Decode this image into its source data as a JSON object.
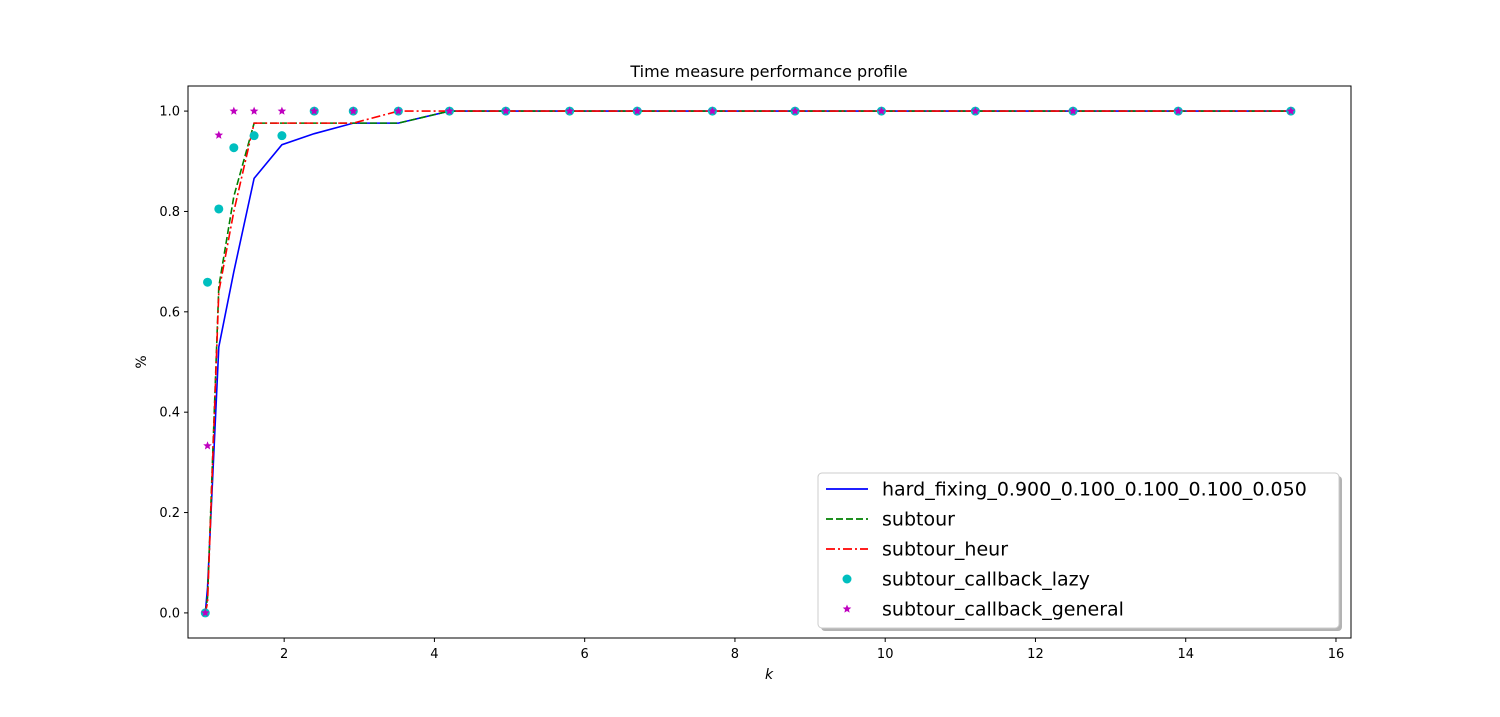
{
  "chart_data": {
    "type": "line",
    "title": "Time measure performance profile",
    "xlabel": "k",
    "ylabel": "%",
    "xlim": [
      0.72,
      16.2
    ],
    "ylim": [
      -0.05,
      1.05
    ],
    "xticks": [
      2,
      4,
      6,
      8,
      10,
      12,
      14,
      16
    ],
    "yticks": [
      0.0,
      0.2,
      0.4,
      0.6,
      0.8,
      1.0
    ],
    "grid": false,
    "legend_position": "lower-right",
    "series": [
      {
        "name": "hard_fixing_0.900_0.100_0.100_0.100_0.050",
        "style": "solid",
        "marker": "none",
        "color": "#0000ff",
        "points": [
          [
            0.95,
            0.0
          ],
          [
            0.98,
            0.05
          ],
          [
            1.13,
            0.53
          ],
          [
            1.33,
            0.68
          ],
          [
            1.6,
            0.866
          ],
          [
            1.97,
            0.933
          ],
          [
            2.4,
            0.955
          ],
          [
            2.92,
            0.976
          ],
          [
            3.52,
            0.976
          ],
          [
            4.2,
            1.0
          ],
          [
            4.95,
            1.0
          ],
          [
            5.8,
            1.0
          ],
          [
            6.7,
            1.0
          ],
          [
            7.7,
            1.0
          ],
          [
            8.8,
            1.0
          ],
          [
            9.95,
            1.0
          ],
          [
            11.2,
            1.0
          ],
          [
            12.5,
            1.0
          ],
          [
            13.9,
            1.0
          ],
          [
            15.4,
            1.0
          ]
        ]
      },
      {
        "name": "subtour",
        "style": "dashed",
        "marker": "none",
        "color": "#008000",
        "points": [
          [
            0.95,
            0.0
          ],
          [
            0.98,
            0.03
          ],
          [
            1.13,
            0.65
          ],
          [
            1.33,
            0.83
          ],
          [
            1.6,
            0.976
          ],
          [
            1.97,
            0.976
          ],
          [
            2.4,
            0.976
          ],
          [
            2.92,
            0.976
          ],
          [
            3.52,
            0.976
          ],
          [
            4.2,
            1.0
          ],
          [
            4.95,
            1.0
          ],
          [
            5.8,
            1.0
          ],
          [
            6.7,
            1.0
          ],
          [
            7.7,
            1.0
          ],
          [
            8.8,
            1.0
          ],
          [
            9.95,
            1.0
          ],
          [
            11.2,
            1.0
          ],
          [
            12.5,
            1.0
          ],
          [
            13.9,
            1.0
          ],
          [
            15.4,
            1.0
          ]
        ]
      },
      {
        "name": "subtour_heur",
        "style": "dashdot",
        "marker": "none",
        "color": "#ff0000",
        "points": [
          [
            0.95,
            0.0
          ],
          [
            0.98,
            0.02
          ],
          [
            1.13,
            0.64
          ],
          [
            1.33,
            0.8
          ],
          [
            1.6,
            0.976
          ],
          [
            1.97,
            0.976
          ],
          [
            2.4,
            0.976
          ],
          [
            2.92,
            0.976
          ],
          [
            3.52,
            1.0
          ],
          [
            4.2,
            1.0
          ],
          [
            4.95,
            1.0
          ],
          [
            5.8,
            1.0
          ],
          [
            6.7,
            1.0
          ],
          [
            7.7,
            1.0
          ],
          [
            8.8,
            1.0
          ],
          [
            9.95,
            1.0
          ],
          [
            11.2,
            1.0
          ],
          [
            12.5,
            1.0
          ],
          [
            13.9,
            1.0
          ],
          [
            15.4,
            1.0
          ]
        ]
      },
      {
        "name": "subtour_callback_lazy",
        "style": "none",
        "marker": "circle",
        "color": "#00bfbf",
        "points": [
          [
            0.95,
            0.0
          ],
          [
            0.98,
            0.659
          ],
          [
            1.13,
            0.805
          ],
          [
            1.33,
            0.927
          ],
          [
            1.6,
            0.951
          ],
          [
            1.97,
            0.951
          ],
          [
            2.4,
            1.0
          ],
          [
            2.92,
            1.0
          ],
          [
            3.52,
            1.0
          ],
          [
            4.2,
            1.0
          ],
          [
            4.95,
            1.0
          ],
          [
            5.8,
            1.0
          ],
          [
            6.7,
            1.0
          ],
          [
            7.7,
            1.0
          ],
          [
            8.8,
            1.0
          ],
          [
            9.95,
            1.0
          ],
          [
            11.2,
            1.0
          ],
          [
            12.5,
            1.0
          ],
          [
            13.9,
            1.0
          ],
          [
            15.4,
            1.0
          ]
        ]
      },
      {
        "name": "subtour_callback_general",
        "style": "none",
        "marker": "star",
        "color": "#bf00bf",
        "points": [
          [
            0.95,
            0.0
          ],
          [
            0.98,
            0.333
          ],
          [
            1.13,
            0.952
          ],
          [
            1.33,
            1.0
          ],
          [
            1.6,
            1.0
          ],
          [
            1.97,
            1.0
          ],
          [
            2.4,
            1.0
          ],
          [
            2.92,
            1.0
          ],
          [
            3.52,
            1.0
          ],
          [
            4.2,
            1.0
          ],
          [
            4.95,
            1.0
          ],
          [
            5.8,
            1.0
          ],
          [
            6.7,
            1.0
          ],
          [
            7.7,
            1.0
          ],
          [
            8.8,
            1.0
          ],
          [
            9.95,
            1.0
          ],
          [
            11.2,
            1.0
          ],
          [
            12.5,
            1.0
          ],
          [
            13.9,
            1.0
          ],
          [
            15.4,
            1.0
          ]
        ]
      }
    ]
  }
}
